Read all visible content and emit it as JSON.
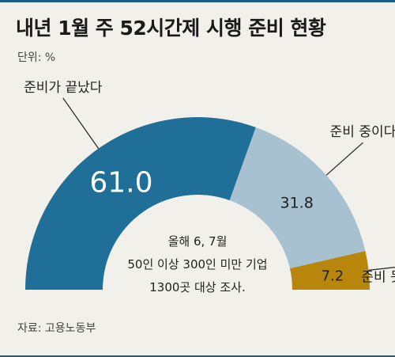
{
  "header": {
    "title": "내년 1월 주 52시간제 시행 준비 현황",
    "unit": "단위: %"
  },
  "chart_data": {
    "type": "pie",
    "variant": "half-donut",
    "title": "내년 1월 주 52시간제 시행 준비 현황",
    "unit": "%",
    "slices": [
      {
        "label": "준비가 끝났다",
        "value": 61.0,
        "value_label": "61.0",
        "color": "#1f6f98",
        "value_color": "#ffffff"
      },
      {
        "label": "준비 중이다",
        "value": 31.8,
        "value_label": "31.8",
        "color": "#a8c1d0",
        "value_color": "#222222"
      },
      {
        "label": "준비 못 하고 있다",
        "value": 7.2,
        "value_label": "7.2",
        "color": "#b8860b",
        "value_color": "#222222"
      }
    ],
    "annotation": [
      "올해 6, 7월",
      "50인 이상 300인 미만 기업",
      "1300곳 대상 조사."
    ]
  },
  "footer": {
    "source": "자료: 고용노동부"
  }
}
